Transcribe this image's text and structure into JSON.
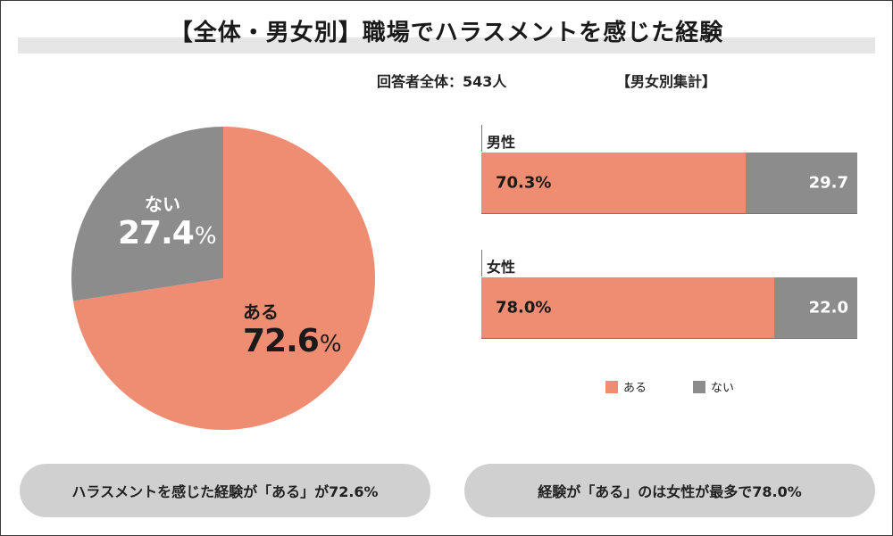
{
  "title": "【全体・男女別】職場でハラスメントを感じた経験",
  "respondents": "回答者全体：543人",
  "gender_section_label": "【男女別集計】",
  "colors": {
    "yes": "#ef8d72",
    "no": "#8c8c8c"
  },
  "chart_data": [
    {
      "type": "pie",
      "slices": [
        {
          "label": "ある",
          "value": 72.6,
          "display": "72.6",
          "unit": "%"
        },
        {
          "label": "ない",
          "value": 27.4,
          "display": "27.4",
          "unit": "%"
        }
      ]
    },
    {
      "type": "bar",
      "orientation": "horizontal",
      "stacked": true,
      "categories": [
        "男性",
        "女性"
      ],
      "series": [
        {
          "name": "ある",
          "values": [
            70.3,
            78.0
          ],
          "labels": [
            "70.3%",
            "78.0%"
          ]
        },
        {
          "name": "ない",
          "values": [
            29.7,
            22.0
          ],
          "labels": [
            "29.7",
            "22.0"
          ]
        }
      ],
      "xlim": [
        0,
        100
      ],
      "legend": [
        "ある",
        "ない"
      ]
    }
  ],
  "summaries": [
    "ハラスメントを感じた経験が「ある」が72.6%",
    "経験が「ある」のは女性が最多で78.0%"
  ]
}
